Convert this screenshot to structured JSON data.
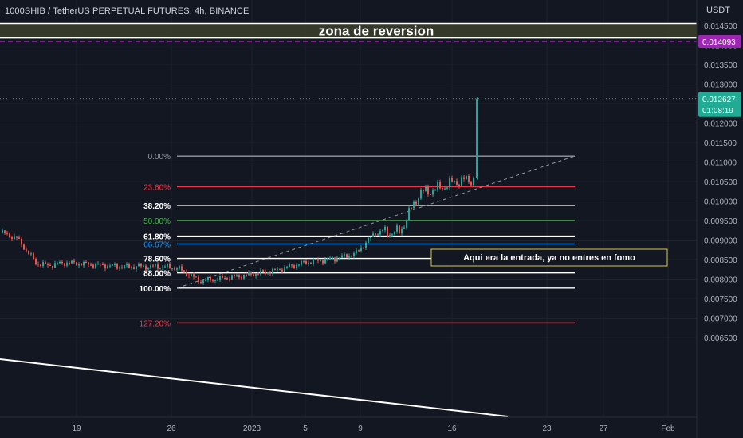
{
  "header": {
    "title": "1000SHIB / TetherUS PERPETUAL FUTURES, 4h, BINANCE"
  },
  "price_axis": {
    "unit": "USDT",
    "ticks": [
      "0.014500",
      "0.014000",
      "0.013500",
      "0.013000",
      "0.012500",
      "0.012000",
      "0.011500",
      "0.011000",
      "0.010500",
      "0.010000",
      "0.009500",
      "0.009000",
      "0.008500",
      "0.008000",
      "0.007500",
      "0.007000",
      "0.006500"
    ],
    "current_price_label": "0.012627",
    "countdown_label": "01:08:19",
    "alert_price_label": "0.014093",
    "current_color": "#22ab94",
    "alert_color": "#9c27b0"
  },
  "time_axis": {
    "labels": [
      "19",
      "26",
      "2023",
      "5",
      "9",
      "16",
      "23",
      "27",
      "Feb"
    ]
  },
  "reversal_zone": {
    "label": "zona de reversion",
    "top_price": 0.01455,
    "bottom_price": 0.01418,
    "color": "#3b3f2a"
  },
  "entry_note": {
    "text": "Aqui era la entrada, ya no entres en fomo",
    "border_color": "#d7c84a"
  },
  "fibonacci": [
    {
      "label": "0.00%",
      "price": 0.01115,
      "color": "#9598a1"
    },
    {
      "label": "23.60%",
      "price": 0.01037,
      "color": "#f23645"
    },
    {
      "label": "38.20%",
      "price": 0.00989,
      "color": "#ffffff"
    },
    {
      "label": "50.00%",
      "price": 0.0095,
      "color": "#4caf50"
    },
    {
      "label": "61.80%",
      "price": 0.0091,
      "color": "#ffffff"
    },
    {
      "label": "66.67%",
      "price": 0.0089,
      "color": "#2196f3"
    },
    {
      "label": "78.60%",
      "price": 0.00853,
      "color": "#ffffff"
    },
    {
      "label": "88.00%",
      "price": 0.00816,
      "color": "#ffffff"
    },
    {
      "label": "100.00%",
      "price": 0.00777,
      "color": "#ffffff"
    },
    {
      "label": "127.20%",
      "price": 0.00688,
      "color": "#f23645"
    }
  ],
  "colors": {
    "background": "#131722",
    "up": "#26a69a",
    "down": "#ef5350",
    "grid": "#1e222d"
  }
}
